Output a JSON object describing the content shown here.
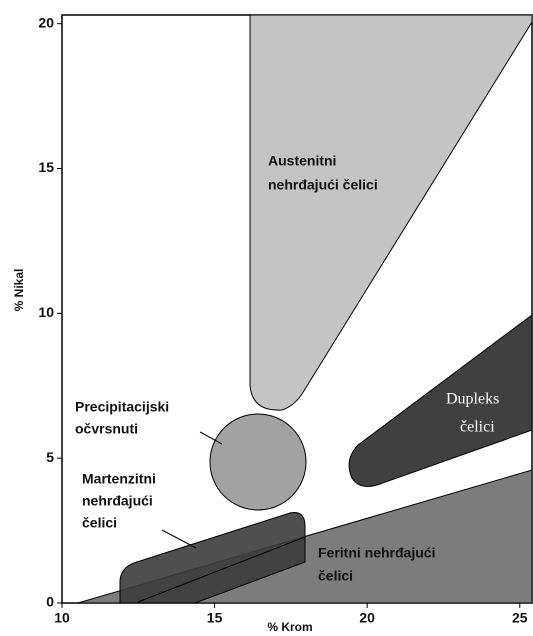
{
  "axes": {
    "x_label": "% Krom",
    "y_label": "% Nikal",
    "xlim": [
      10,
      25.4
    ],
    "ylim": [
      0,
      20.3
    ],
    "xticks": [
      10,
      15,
      20,
      25
    ],
    "yticks": [
      0,
      5,
      10,
      15,
      20
    ]
  },
  "regions": [
    {
      "label": [
        "Austenitni",
        "nehrđajući čelici"
      ]
    },
    {
      "label": [
        "Precipitacijski",
        "očvrsnuti"
      ]
    },
    {
      "label": [
        "Dupleks",
        "čelici"
      ]
    },
    {
      "label": [
        "Martenzitni",
        "nehrđajući",
        "čelici"
      ]
    },
    {
      "label": [
        "Feritni nehrđajući",
        "čelici"
      ]
    }
  ]
}
